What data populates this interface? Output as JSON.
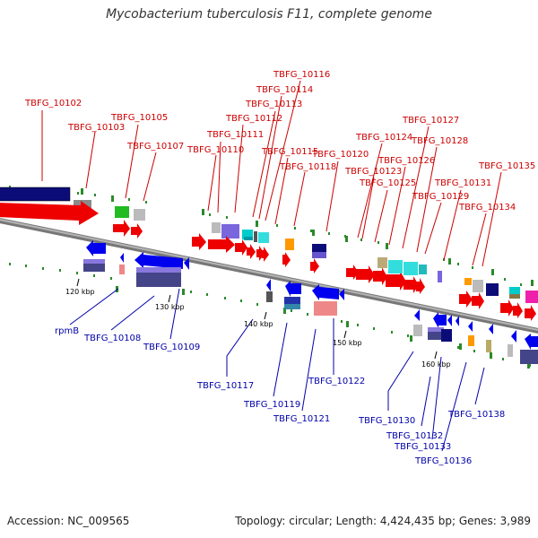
{
  "title": "Mycobacterium tuberculosis F11, complete genome",
  "accession": {
    "label": "Accession:",
    "value": "NC_009565"
  },
  "topology": {
    "label": "Topology:",
    "value": "circular"
  },
  "length": {
    "label": "Length:",
    "value": "4,424,435 bp"
  },
  "genes": {
    "label": "Genes:",
    "value": "3,989"
  },
  "colors": {
    "forward_label": "#cc0000",
    "reverse_label": "#0000aa",
    "leader": "#cc0000",
    "reverse_leader": "#0000aa",
    "backbone": "#8c8c8c"
  },
  "scale_ticks": [
    "120 kbp",
    "130 kbp",
    "140 kbp",
    "150 kbp",
    "160 kbp"
  ],
  "forward_labels": [
    "TBFG_10102",
    "TBFG_10103",
    "TBFG_10105",
    "TBFG_10107",
    "TBFG_10110",
    "TBFG_10111",
    "TBFG_10112",
    "TBFG_10113",
    "TBFG_10114",
    "TBFG_10116",
    "TBFG_10115",
    "TBFG_10118",
    "TBFG_10120",
    "TBFG_10124",
    "TBFG_10123",
    "TBFG_10125",
    "TBFG_10126",
    "TBFG_10127",
    "TBFG_10128",
    "TBFG_10129",
    "TBFG_10131",
    "TBFG_10134",
    "TBFG_10135"
  ],
  "reverse_labels": [
    "rpmB",
    "TBFG_10108",
    "TBFG_10109",
    "TBFG_10117",
    "TBFG_10119",
    "TBFG_10121",
    "TBFG_10122",
    "TBFG_10130",
    "TBFG_10132",
    "TBFG_10133",
    "TBFG_10136",
    "TBFG_10138"
  ]
}
